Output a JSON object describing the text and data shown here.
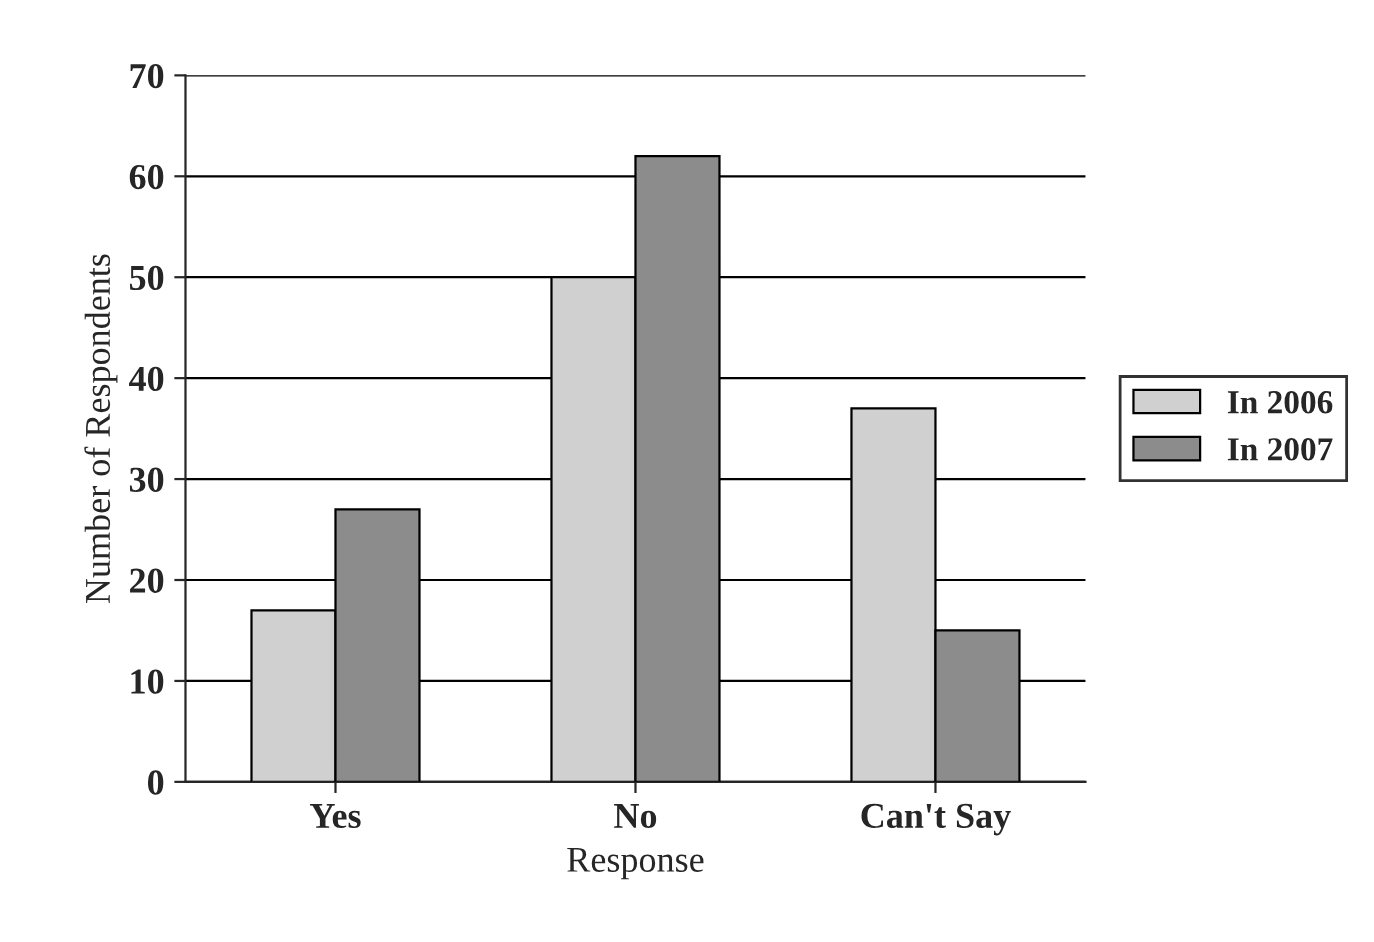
{
  "chart_data": {
    "type": "bar",
    "xlabel": "Response",
    "ylabel": "Number of Respondents",
    "categories": [
      "Yes",
      "No",
      "Can't Say"
    ],
    "series": [
      {
        "name": "In 2006",
        "color": "#d0d0d0",
        "values": [
          17,
          50,
          37
        ]
      },
      {
        "name": "In 2007",
        "color": "#8c8c8c",
        "values": [
          27,
          62,
          15
        ]
      }
    ],
    "ylim": [
      0,
      70
    ],
    "yticks": [
      0,
      10,
      20,
      30,
      40,
      50,
      60,
      70
    ],
    "grid": "y",
    "legend": "right"
  }
}
